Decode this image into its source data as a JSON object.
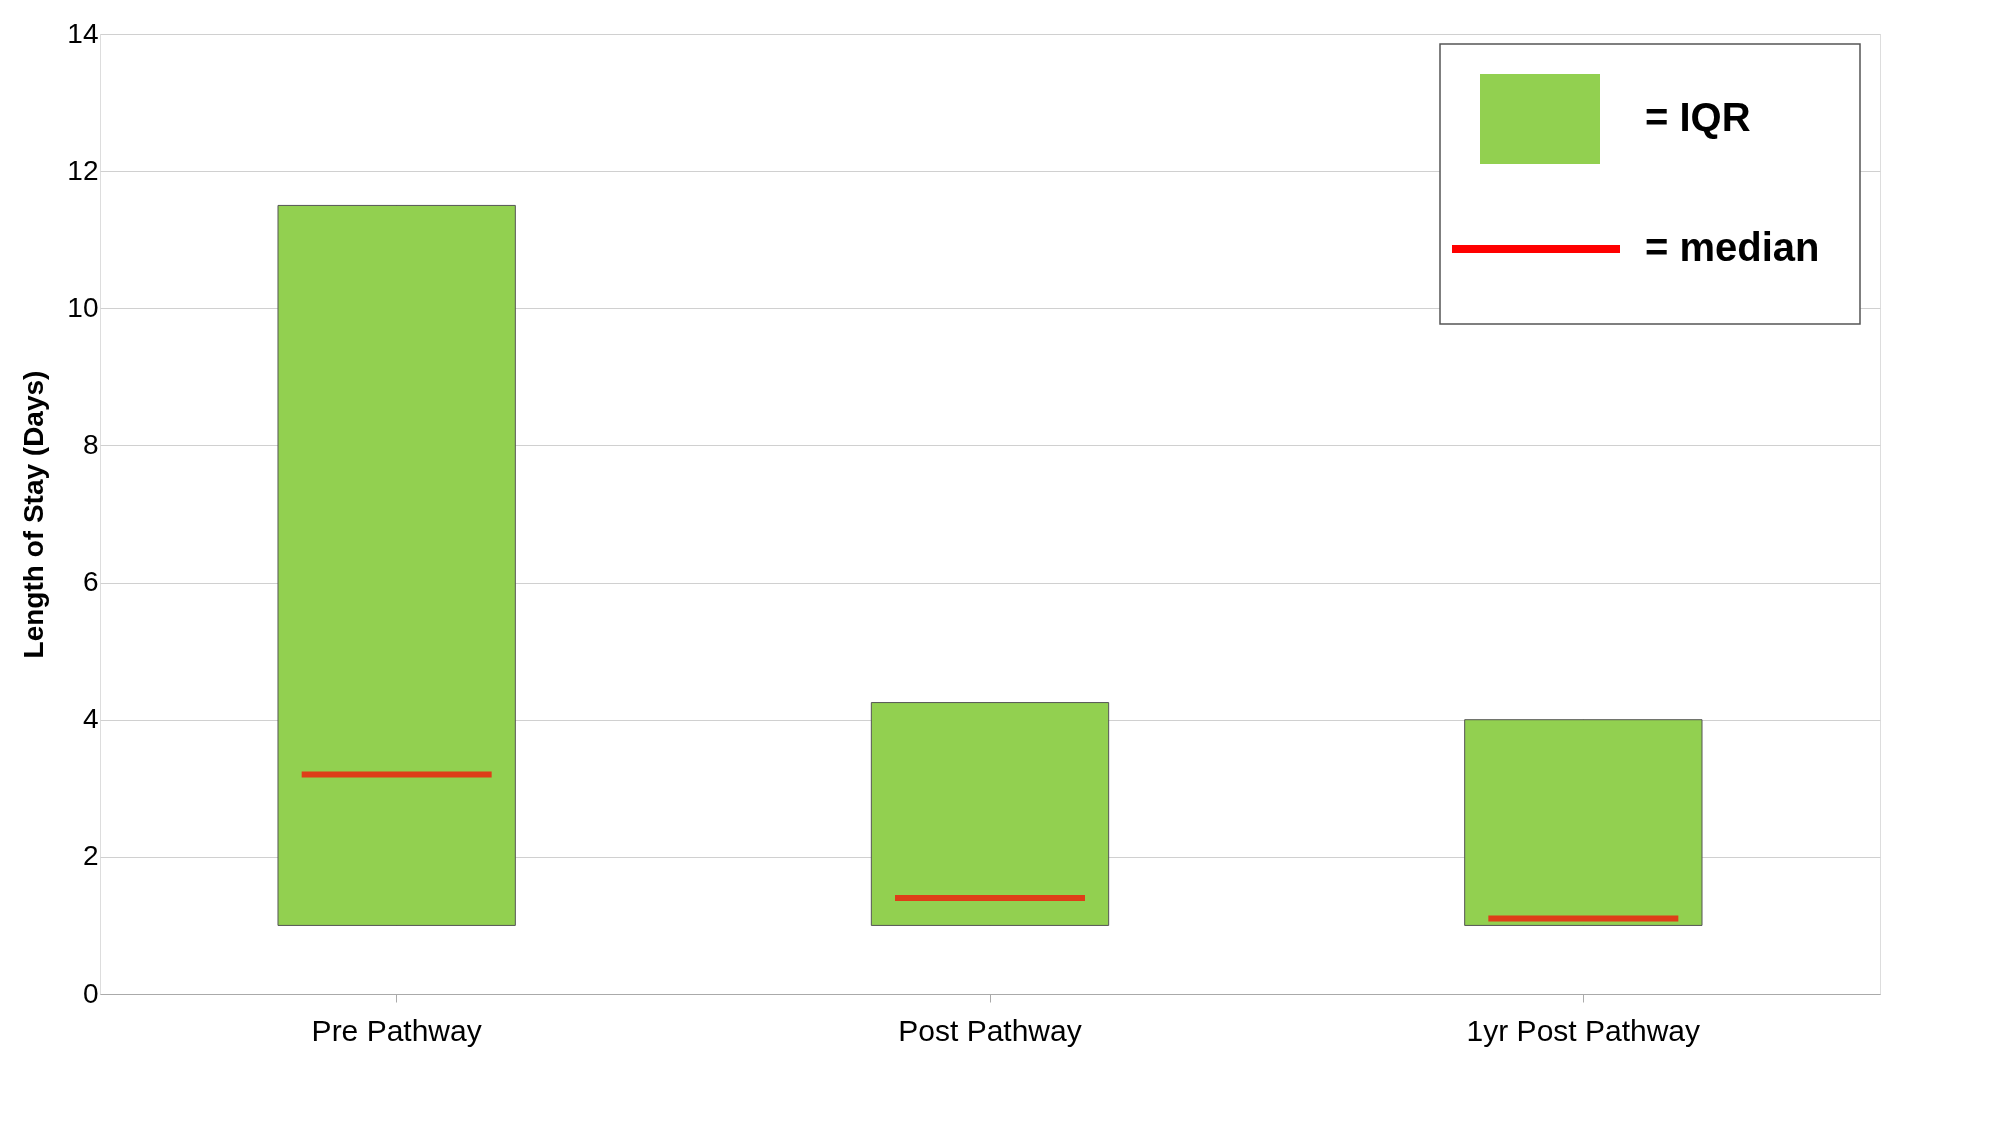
{
  "chart_data": {
    "type": "box",
    "ylabel": "Length of Stay (Days)",
    "categories": [
      "Pre Pathway",
      "Post Pathway",
      "1yr Post Pathway"
    ],
    "series": [
      {
        "name": "= IQR",
        "color": "#92d050",
        "boxes": [
          {
            "low": 1.0,
            "q1": 1.0,
            "median": 3.2,
            "q3": 11.5,
            "high": 11.5
          },
          {
            "low": 1.0,
            "q1": 1.0,
            "median": 1.4,
            "q3": 4.25,
            "high": 4.25
          },
          {
            "low": 1.0,
            "q1": 1.0,
            "median": 1.1,
            "q3": 4.0,
            "high": 4.0
          }
        ]
      }
    ],
    "annotations": [
      "= median"
    ],
    "ylim": [
      0,
      14
    ],
    "yticks": [
      0,
      2,
      4,
      6,
      8,
      10,
      12,
      14
    ],
    "grid": "y",
    "legend": "top right"
  }
}
